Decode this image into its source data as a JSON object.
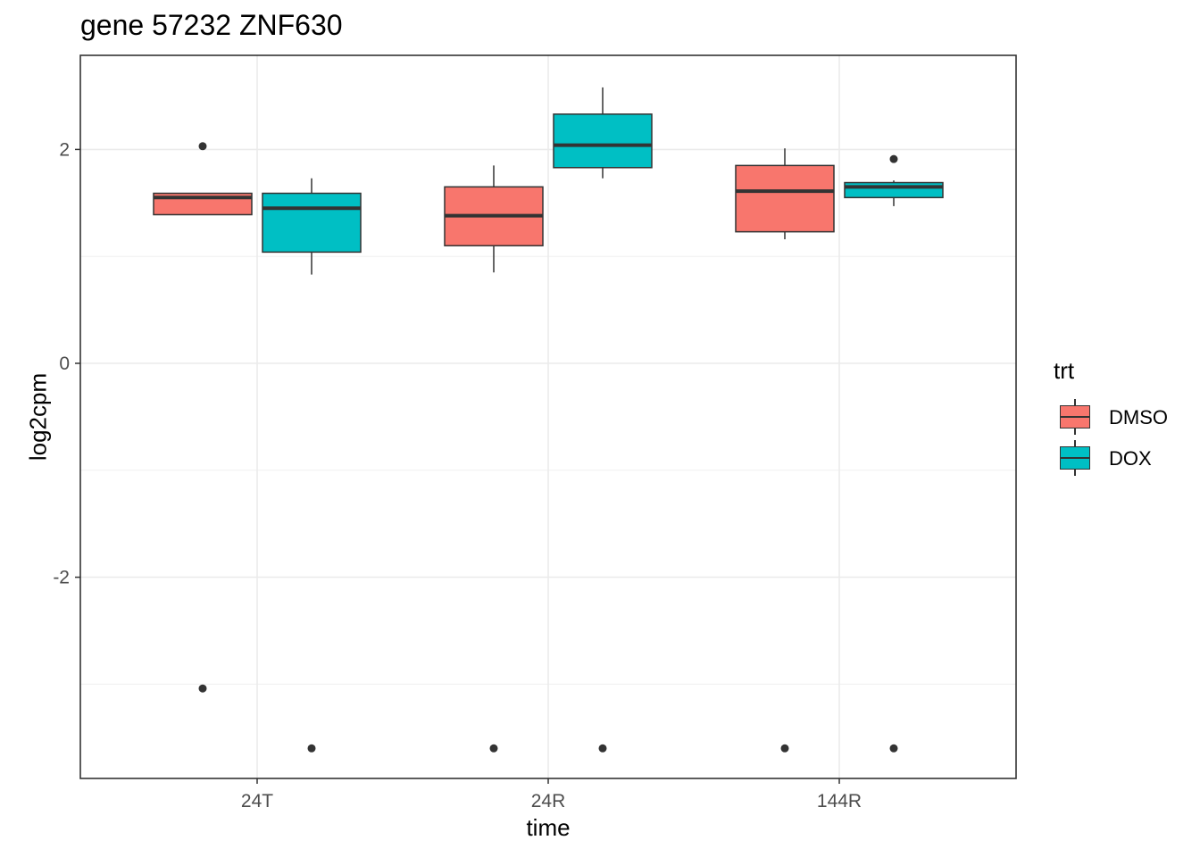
{
  "title": "gene 57232 ZNF630",
  "chart_data": {
    "type": "boxplot",
    "title": "gene 57232 ZNF630",
    "xlabel": "time",
    "ylabel": "log2cpm",
    "categories": [
      "24T",
      "24R",
      "144R"
    ],
    "ylim": [
      -3.9,
      2.85
    ],
    "yticks": [
      -2,
      0,
      2
    ],
    "grid": true,
    "legend": {
      "title": "trt",
      "position": "right",
      "items": [
        {
          "label": "DMSO",
          "color": "#F8766D"
        },
        {
          "label": "DOX",
          "color": "#00BFC4"
        }
      ]
    },
    "series": [
      {
        "name": "DMSO",
        "color": "#F8766D",
        "boxes": [
          {
            "category": "24T",
            "lower_whisker": 1.39,
            "q1": 1.39,
            "median": 1.55,
            "q3": 1.59,
            "upper_whisker": 1.59,
            "outliers": [
              2.03,
              -3.04
            ]
          },
          {
            "category": "24R",
            "lower_whisker": 0.85,
            "q1": 1.1,
            "median": 1.38,
            "q3": 1.65,
            "upper_whisker": 1.85,
            "outliers": [
              -3.6
            ]
          },
          {
            "category": "144R",
            "lower_whisker": 1.16,
            "q1": 1.23,
            "median": 1.61,
            "q3": 1.85,
            "upper_whisker": 2.01,
            "outliers": [
              -3.6
            ]
          }
        ]
      },
      {
        "name": "DOX",
        "color": "#00BFC4",
        "boxes": [
          {
            "category": "24T",
            "lower_whisker": 0.83,
            "q1": 1.04,
            "median": 1.45,
            "q3": 1.59,
            "upper_whisker": 1.73,
            "outliers": [
              -3.6
            ]
          },
          {
            "category": "24R",
            "lower_whisker": 1.73,
            "q1": 1.83,
            "median": 2.04,
            "q3": 2.33,
            "upper_whisker": 2.58,
            "outliers": [
              -3.6
            ]
          },
          {
            "category": "144R",
            "lower_whisker": 1.47,
            "q1": 1.55,
            "median": 1.65,
            "q3": 1.69,
            "upper_whisker": 1.71,
            "outliers": [
              1.91,
              -3.6
            ]
          }
        ]
      }
    ]
  }
}
